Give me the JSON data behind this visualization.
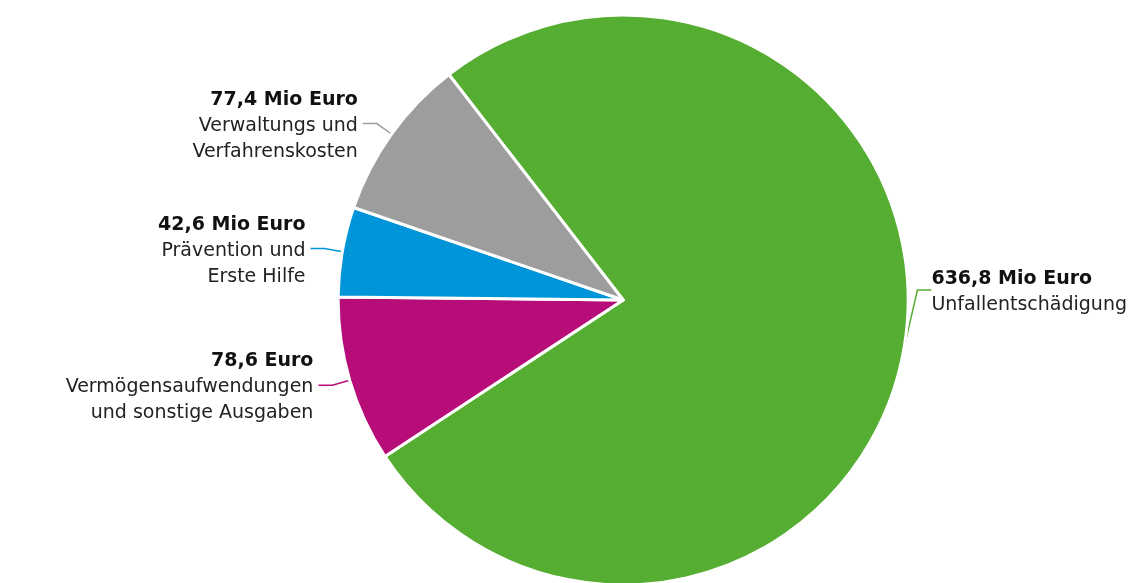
{
  "chart_data": {
    "type": "pie",
    "categories": [
      "Unfallentschädigung",
      "Vermögensaufwendungen\nund sonstige Ausgaben",
      "Prävention und\nErste Hilfe",
      "Verwaltungs und\nVerfahrenskosten"
    ],
    "values": [
      636.8,
      78.6,
      42.6,
      77.4
    ],
    "colors": [
      "#55ae32",
      "#b60d78",
      "#0095d9",
      "#9d9d9d"
    ],
    "value_labels": [
      "636,8 Mio Euro",
      "78,6 Euro",
      "42,6 Mio Euro",
      "77,4 Mio Euro"
    ]
  }
}
